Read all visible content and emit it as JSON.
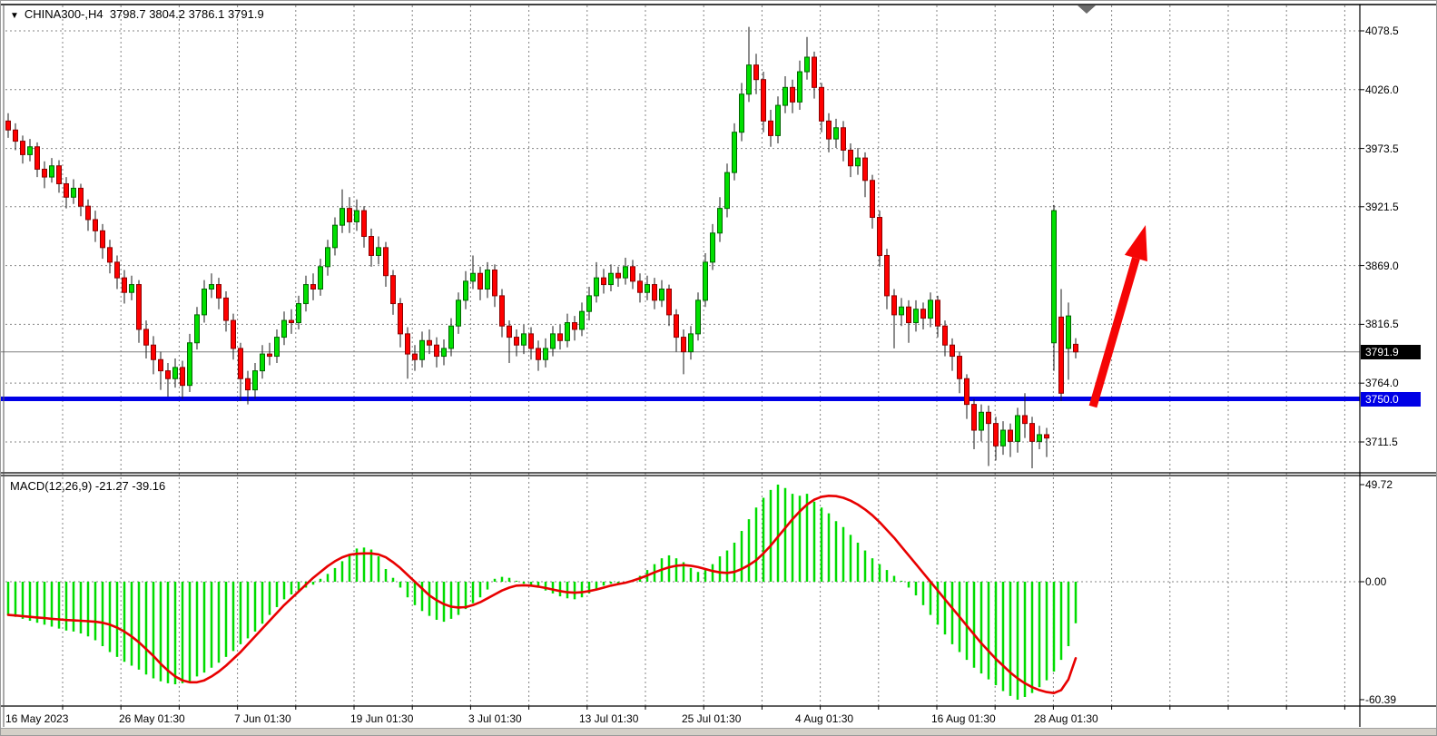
{
  "window": {
    "title_symbol": "CHINA300-,H4  3798.7 3804.2 3786.1 3791.9",
    "symbol_dropdown_icon": "▼"
  },
  "price_scale": {
    "current_price_badge": "3791.9",
    "hline_badge": "3750.0"
  },
  "macd_panel": {
    "label": "MACD(12,26,9) -21.27 -39.16"
  },
  "chart_data": {
    "type": "candlestick",
    "title": "CHINA300-,H4",
    "timeframe": "H4",
    "last_bar_ohlc": {
      "open": 3798.7,
      "high": 3804.2,
      "low": 3786.1,
      "close": 3791.9
    },
    "y_ticks_price": [
      4078.5,
      4026.0,
      3973.5,
      3921.5,
      3869.0,
      3816.5,
      3764.0,
      3711.5
    ],
    "y_ticks_macd": [
      49.72,
      0.0,
      -60.39
    ],
    "x_labels": [
      "16 May 2023",
      "26 May 01:30",
      "7 Jun 01:30",
      "19 Jun 01:30",
      "3 Jul 01:30",
      "13 Jul 01:30",
      "25 Jul 01:30",
      "4 Aug 01:30",
      "16 Aug 01:30",
      "28 Aug 01:30"
    ],
    "current_price": 3791.9,
    "horizontal_line": {
      "price": 3750.0,
      "color": "#0000e6"
    },
    "colors": {
      "up": "#00df00",
      "up_border": "#006600",
      "down": "#ff0000",
      "down_border": "#8b0000",
      "wick": "#1a1a1a",
      "grid": "#848484",
      "signal": "#e80000",
      "hist": "#00dc00",
      "arrow": "#f50505",
      "current_line": "#808080"
    },
    "legend": {
      "macd_label": "MACD(12,26,9)",
      "macd_value": -21.27,
      "signal_value": -39.16,
      "legend_position": "top-left"
    },
    "grid": "dashed",
    "candles": [
      [
        3998,
        4005,
        3983,
        3990
      ],
      [
        3990,
        3996,
        3972,
        3980
      ],
      [
        3980,
        3985,
        3960,
        3968
      ],
      [
        3968,
        3982,
        3962,
        3975
      ],
      [
        3975,
        3979,
        3948,
        3955
      ],
      [
        3955,
        3962,
        3938,
        3948
      ],
      [
        3948,
        3965,
        3943,
        3958
      ],
      [
        3958,
        3963,
        3934,
        3942
      ],
      [
        3942,
        3948,
        3920,
        3930
      ],
      [
        3930,
        3946,
        3924,
        3938
      ],
      [
        3938,
        3942,
        3913,
        3922
      ],
      [
        3922,
        3928,
        3900,
        3910
      ],
      [
        3910,
        3918,
        3890,
        3900
      ],
      [
        3900,
        3906,
        3875,
        3885
      ],
      [
        3885,
        3892,
        3862,
        3872
      ],
      [
        3872,
        3878,
        3848,
        3858
      ],
      [
        3858,
        3865,
        3835,
        3845
      ],
      [
        3845,
        3860,
        3838,
        3852
      ],
      [
        3852,
        3856,
        3800,
        3812
      ],
      [
        3812,
        3820,
        3786,
        3798
      ],
      [
        3798,
        3806,
        3772,
        3785
      ],
      [
        3785,
        3792,
        3758,
        3775
      ],
      [
        3775,
        3782,
        3752,
        3768
      ],
      [
        3768,
        3786,
        3760,
        3778
      ],
      [
        3778,
        3784,
        3750,
        3762
      ],
      [
        3762,
        3808,
        3756,
        3800
      ],
      [
        3800,
        3832,
        3794,
        3825
      ],
      [
        3825,
        3856,
        3818,
        3848
      ],
      [
        3848,
        3862,
        3840,
        3852
      ],
      [
        3852,
        3858,
        3830,
        3840
      ],
      [
        3840,
        3846,
        3810,
        3820
      ],
      [
        3820,
        3826,
        3785,
        3795
      ],
      [
        3795,
        3800,
        3748,
        3768
      ],
      [
        3768,
        3775,
        3745,
        3758
      ],
      [
        3758,
        3782,
        3750,
        3775
      ],
      [
        3775,
        3798,
        3768,
        3790
      ],
      [
        3790,
        3800,
        3780,
        3788
      ],
      [
        3788,
        3812,
        3782,
        3805
      ],
      [
        3805,
        3828,
        3798,
        3820
      ],
      [
        3820,
        3830,
        3808,
        3818
      ],
      [
        3818,
        3842,
        3812,
        3835
      ],
      [
        3835,
        3860,
        3828,
        3852
      ],
      [
        3852,
        3862,
        3838,
        3848
      ],
      [
        3848,
        3875,
        3842,
        3868
      ],
      [
        3868,
        3892,
        3860,
        3885
      ],
      [
        3885,
        3912,
        3878,
        3905
      ],
      [
        3905,
        3937,
        3898,
        3920
      ],
      [
        3920,
        3930,
        3898,
        3908
      ],
      [
        3908,
        3928,
        3900,
        3918
      ],
      [
        3918,
        3922,
        3885,
        3895
      ],
      [
        3895,
        3902,
        3868,
        3878
      ],
      [
        3878,
        3895,
        3870,
        3885
      ],
      [
        3885,
        3890,
        3850,
        3860
      ],
      [
        3860,
        3865,
        3825,
        3835
      ],
      [
        3835,
        3840,
        3796,
        3808
      ],
      [
        3808,
        3814,
        3768,
        3790
      ],
      [
        3790,
        3798,
        3775,
        3785
      ],
      [
        3785,
        3810,
        3778,
        3802
      ],
      [
        3802,
        3812,
        3790,
        3798
      ],
      [
        3798,
        3805,
        3778,
        3788
      ],
      [
        3788,
        3803,
        3780,
        3795
      ],
      [
        3795,
        3822,
        3788,
        3815
      ],
      [
        3815,
        3845,
        3808,
        3838
      ],
      [
        3838,
        3864,
        3830,
        3855
      ],
      [
        3855,
        3878,
        3848,
        3862
      ],
      [
        3862,
        3868,
        3838,
        3848
      ],
      [
        3848,
        3872,
        3840,
        3865
      ],
      [
        3865,
        3870,
        3832,
        3842
      ],
      [
        3842,
        3848,
        3805,
        3815
      ],
      [
        3815,
        3820,
        3782,
        3805
      ],
      [
        3805,
        3812,
        3788,
        3798
      ],
      [
        3798,
        3816,
        3790,
        3808
      ],
      [
        3808,
        3814,
        3785,
        3795
      ],
      [
        3795,
        3802,
        3775,
        3785
      ],
      [
        3785,
        3804,
        3778,
        3795
      ],
      [
        3795,
        3815,
        3788,
        3808
      ],
      [
        3808,
        3816,
        3794,
        3802
      ],
      [
        3802,
        3826,
        3796,
        3818
      ],
      [
        3818,
        3824,
        3802,
        3812
      ],
      [
        3812,
        3836,
        3806,
        3828
      ],
      [
        3828,
        3850,
        3820,
        3842
      ],
      [
        3842,
        3872,
        3836,
        3858
      ],
      [
        3858,
        3866,
        3844,
        3852
      ],
      [
        3852,
        3870,
        3846,
        3862
      ],
      [
        3862,
        3868,
        3850,
        3858
      ],
      [
        3858,
        3876,
        3852,
        3868
      ],
      [
        3868,
        3874,
        3848,
        3855
      ],
      [
        3855,
        3862,
        3836,
        3845
      ],
      [
        3845,
        3860,
        3838,
        3852
      ],
      [
        3852,
        3858,
        3830,
        3838
      ],
      [
        3838,
        3856,
        3832,
        3848
      ],
      [
        3848,
        3852,
        3815,
        3825
      ],
      [
        3825,
        3830,
        3792,
        3805
      ],
      [
        3805,
        3812,
        3772,
        3792
      ],
      [
        3792,
        3815,
        3785,
        3808
      ],
      [
        3808,
        3845,
        3802,
        3838
      ],
      [
        3838,
        3880,
        3832,
        3872
      ],
      [
        3872,
        3906,
        3865,
        3898
      ],
      [
        3898,
        3930,
        3890,
        3920
      ],
      [
        3920,
        3960,
        3912,
        3952
      ],
      [
        3952,
        3996,
        3945,
        3988
      ],
      [
        3988,
        4032,
        3980,
        4022
      ],
      [
        4022,
        4082,
        4015,
        4048
      ],
      [
        4048,
        4058,
        4022,
        4035
      ],
      [
        4035,
        4042,
        3988,
        3998
      ],
      [
        3998,
        4008,
        3975,
        3985
      ],
      [
        3985,
        4020,
        3978,
        4012
      ],
      [
        4012,
        4038,
        4005,
        4028
      ],
      [
        4028,
        4035,
        4005,
        4015
      ],
      [
        4015,
        4052,
        4008,
        4042
      ],
      [
        4042,
        4073,
        4035,
        4055
      ],
      [
        4055,
        4060,
        4018,
        4028
      ],
      [
        4028,
        4032,
        3988,
        3998
      ],
      [
        3998,
        4005,
        3970,
        3982
      ],
      [
        3982,
        4000,
        3974,
        3992
      ],
      [
        3992,
        3998,
        3962,
        3972
      ],
      [
        3972,
        3978,
        3948,
        3958
      ],
      [
        3958,
        3974,
        3950,
        3965
      ],
      [
        3965,
        3970,
        3930,
        3945
      ],
      [
        3945,
        3950,
        3902,
        3912
      ],
      [
        3912,
        3918,
        3868,
        3878
      ],
      [
        3878,
        3884,
        3830,
        3842
      ],
      [
        3842,
        3848,
        3795,
        3825
      ],
      [
        3825,
        3840,
        3815,
        3832
      ],
      [
        3832,
        3838,
        3800,
        3818
      ],
      [
        3818,
        3838,
        3810,
        3830
      ],
      [
        3830,
        3836,
        3812,
        3822
      ],
      [
        3822,
        3845,
        3814,
        3838
      ],
      [
        3838,
        3842,
        3805,
        3815
      ],
      [
        3815,
        3820,
        3788,
        3798
      ],
      [
        3798,
        3804,
        3775,
        3788
      ],
      [
        3788,
        3792,
        3755,
        3768
      ],
      [
        3768,
        3772,
        3732,
        3745
      ],
      [
        3745,
        3750,
        3705,
        3722
      ],
      [
        3722,
        3745,
        3712,
        3738
      ],
      [
        3738,
        3744,
        3690,
        3728
      ],
      [
        3728,
        3734,
        3695,
        3708
      ],
      [
        3708,
        3730,
        3700,
        3722
      ],
      [
        3722,
        3728,
        3698,
        3712
      ],
      [
        3712,
        3742,
        3702,
        3735
      ],
      [
        3735,
        3755,
        3715,
        3728
      ],
      [
        3728,
        3734,
        3688,
        3712
      ],
      [
        3712,
        3726,
        3705,
        3718
      ],
      [
        3718,
        3724,
        3698,
        3715
      ],
      [
        3800,
        3923,
        3775,
        3918
      ],
      [
        3823,
        3848,
        3748,
        3755
      ],
      [
        3795,
        3836,
        3767,
        3824
      ],
      [
        3798.7,
        3804.2,
        3786.1,
        3791.9
      ]
    ],
    "macd_hist": [
      -17,
      -18,
      -19,
      -20,
      -21,
      -22,
      -23,
      -24,
      -25,
      -25.5,
      -26.5,
      -28,
      -30,
      -33,
      -36,
      -38.5,
      -41,
      -43,
      -45,
      -47.5,
      -49.5,
      -51,
      -52,
      -52.5,
      -52,
      -51,
      -48.5,
      -46.5,
      -44,
      -41.5,
      -38.5,
      -35.5,
      -32,
      -29,
      -25.5,
      -21.5,
      -17,
      -13,
      -9,
      -6.5,
      -4.5,
      -3,
      -1.5,
      1.5,
      4,
      7,
      10.5,
      14,
      17,
      17.5,
      16.5,
      13,
      6.5,
      2,
      -3,
      -8,
      -12,
      -15,
      -17.5,
      -19.5,
      -20.5,
      -19,
      -17,
      -14,
      -11,
      -8,
      -4,
      1.5,
      2.5,
      2,
      0.5,
      -1,
      -2,
      -3,
      -4.5,
      -6,
      -7.5,
      -8.5,
      -9,
      -8,
      -6,
      -4,
      -2,
      -1,
      -1.5,
      -0.5,
      1,
      3,
      6,
      9,
      12,
      13.5,
      12,
      10,
      7,
      5,
      6,
      9,
      13,
      16,
      20,
      26,
      32,
      38,
      43,
      47,
      49.72,
      48,
      45,
      44,
      45,
      41,
      38,
      35,
      31,
      28,
      24,
      20,
      16,
      12,
      9,
      6,
      3,
      0.5,
      -3,
      -7,
      -12,
      -17,
      -22,
      -27,
      -32,
      -36,
      -40,
      -44,
      -47,
      -50,
      -53,
      -56,
      -58.5,
      -60.39,
      -59,
      -57,
      -54,
      -50.5,
      -46,
      -40,
      -33,
      -21.27
    ],
    "macd_signal": [
      -17,
      -17.3,
      -17.6,
      -18,
      -18.3,
      -18.6,
      -19,
      -19.3,
      -19.6,
      -19.8,
      -20,
      -20.2,
      -20.5,
      -21,
      -22,
      -23.5,
      -25.5,
      -28,
      -31,
      -34.5,
      -38,
      -42,
      -45.5,
      -48.5,
      -50.5,
      -51.5,
      -51.5,
      -50.5,
      -48.5,
      -46,
      -43,
      -39.5,
      -36,
      -32,
      -28,
      -24,
      -20,
      -16,
      -12,
      -8.5,
      -5,
      -1.5,
      2,
      5,
      8,
      10.5,
      12.5,
      13.8,
      14.3,
      14.5,
      14.5,
      14,
      12.5,
      10,
      7,
      3.5,
      0,
      -3.5,
      -7,
      -9.5,
      -11.5,
      -12.8,
      -13.2,
      -13,
      -12,
      -10.5,
      -8.5,
      -6.5,
      -4.5,
      -3,
      -2,
      -1.8,
      -2,
      -2.5,
      -3.2,
      -4,
      -4.8,
      -5.4,
      -5.6,
      -5.4,
      -4.8,
      -4,
      -3,
      -2,
      -1.2,
      -0.5,
      0.5,
      1.8,
      3.2,
      4.8,
      6.2,
      7.4,
      8.2,
      8.5,
      8.2,
      7.5,
      6.5,
      5.5,
      4.8,
      4.5,
      5,
      6.5,
      8.5,
      11,
      14.5,
      18.5,
      23,
      27.5,
      32,
      36,
      39.5,
      42,
      43.5,
      44,
      43.8,
      43,
      41.5,
      39.5,
      37,
      34,
      30.5,
      26.5,
      22.5,
      18,
      13.5,
      9,
      4.5,
      0,
      -4.5,
      -9,
      -13.5,
      -18,
      -22.5,
      -27,
      -31.5,
      -35.5,
      -39.5,
      -43,
      -46.5,
      -49.5,
      -52,
      -54,
      -55.5,
      -56.5,
      -57,
      -55.5,
      -50,
      -39.16
    ],
    "annotation_arrow": {
      "color": "#f50505",
      "tail": [
        1203,
        447
      ],
      "tip": [
        1261,
        247
      ],
      "meaning": "bullish projection from 3750.0 support line"
    }
  }
}
